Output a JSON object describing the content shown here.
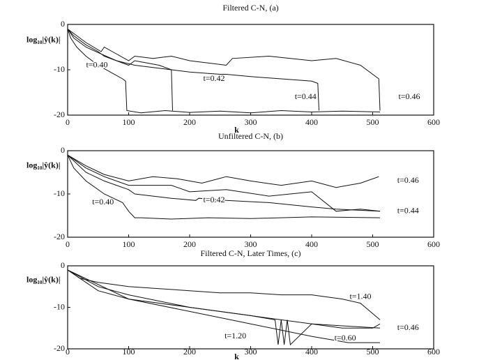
{
  "chart_data": [
    {
      "type": "line",
      "title": "Filtered C-N, (a)",
      "ylabel": "log₁₀|ŷ(k)|",
      "xlabel": "k",
      "xlim": [
        0,
        600
      ],
      "ylim": [
        -20,
        0
      ],
      "xticks": [
        0,
        100,
        200,
        300,
        400,
        500,
        600
      ],
      "yticks": [
        0,
        -10,
        -20
      ],
      "color": "#111111",
      "series": [
        {
          "name": "t=0.40",
          "x": [
            0,
            5,
            15,
            30,
            50,
            70,
            90,
            95,
            97,
            120,
            160,
            200,
            250,
            300,
            350,
            400,
            450,
            512
          ],
          "values": [
            -1,
            -3,
            -5,
            -7,
            -9,
            -10.5,
            -12,
            -12.5,
            -19,
            -19.5,
            -19,
            -19.4,
            -19.1,
            -19.5,
            -19,
            -19.3,
            -19.1,
            -19.3
          ]
        },
        {
          "name": "t=0.42",
          "x": [
            0,
            10,
            30,
            55,
            80,
            110,
            140,
            170,
            172
          ],
          "values": [
            -1,
            -3,
            -5,
            -6.5,
            -8,
            -9,
            -9.5,
            -10,
            -19
          ]
        },
        {
          "name": "t=0.44",
          "x": [
            0,
            10,
            30,
            50,
            60,
            100,
            110,
            150,
            170,
            200,
            250,
            260,
            300,
            350,
            400,
            410,
            412
          ],
          "values": [
            -1,
            -2.5,
            -4.5,
            -6,
            -7,
            -9,
            -8,
            -9,
            -10,
            -10.5,
            -11,
            -11,
            -11.5,
            -12,
            -12.5,
            -13,
            -19
          ]
        },
        {
          "name": "t=0.46",
          "x": [
            0,
            10,
            30,
            55,
            60,
            100,
            110,
            140,
            170,
            200,
            260,
            270,
            330,
            400,
            440,
            480,
            510,
            512
          ],
          "values": [
            -1,
            -2,
            -4,
            -6,
            -5,
            -8,
            -7,
            -7.5,
            -7,
            -8,
            -9,
            -7.5,
            -7,
            -8,
            -7.5,
            -9,
            -12,
            -19
          ]
        }
      ]
    },
    {
      "type": "line",
      "title": "Unfiltered C-N, (b)",
      "ylabel": "log₁₀|ŷ(k)|",
      "xlim": [
        0,
        600
      ],
      "ylim": [
        -20,
        0
      ],
      "xticks": [
        0,
        100,
        200,
        300,
        400,
        500,
        600
      ],
      "yticks": [
        0,
        -10,
        -20
      ],
      "color": "#111111",
      "series": [
        {
          "name": "t=0.40",
          "x": [
            0,
            10,
            30,
            60,
            90,
            100,
            110,
            120,
            170,
            230,
            300,
            400,
            512
          ],
          "values": [
            -1,
            -4,
            -7,
            -10,
            -12,
            -14,
            -15.5,
            -15.5,
            -15.8,
            -15.5,
            -15.7,
            -15.3,
            -15.5
          ]
        },
        {
          "name": "t=0.42",
          "x": [
            0,
            30,
            60,
            100,
            110,
            170,
            210,
            215,
            260,
            330,
            400,
            440,
            512
          ],
          "values": [
            -1,
            -5,
            -7,
            -9,
            -10,
            -11,
            -11.5,
            -11,
            -11.5,
            -12,
            -13,
            -13.5,
            -14
          ]
        },
        {
          "name": "t=0.44",
          "x": [
            0,
            30,
            60,
            100,
            170,
            200,
            260,
            330,
            400,
            440,
            480,
            512
          ],
          "values": [
            -1,
            -4,
            -6,
            -8,
            -8,
            -9.5,
            -9,
            -10.5,
            -9.5,
            -14,
            -13.5,
            -14
          ]
        },
        {
          "name": "t=0.46",
          "x": [
            0,
            30,
            60,
            100,
            140,
            180,
            220,
            260,
            300,
            350,
            400,
            440,
            480,
            510
          ],
          "values": [
            -1,
            -3.5,
            -5.5,
            -7,
            -6,
            -6.5,
            -7.5,
            -6,
            -7,
            -8,
            -7,
            -8.5,
            -7.5,
            -6
          ]
        }
      ]
    },
    {
      "type": "line",
      "title": "Filtered C-N, Later Times, (c)",
      "ylabel": "log₁₀|ŷ(k)|",
      "xlabel": "k",
      "xlim": [
        0,
        600
      ],
      "ylim": [
        -20,
        0
      ],
      "xticks": [
        0,
        100,
        200,
        300,
        400,
        500,
        600
      ],
      "yticks": [
        0,
        -10,
        -20
      ],
      "color": "#111111",
      "series": [
        {
          "name": "t=1.40",
          "x": [
            0,
            20,
            50,
            100,
            150,
            200,
            250,
            300,
            350,
            400,
            450,
            480,
            512
          ],
          "values": [
            -1,
            -3,
            -4,
            -5,
            -5.5,
            -6,
            -6.5,
            -6.5,
            -7,
            -7,
            -8,
            -9,
            -13
          ]
        },
        {
          "name": "t=0.46",
          "x": [
            0,
            50,
            100,
            200,
            300,
            400,
            450,
            500,
            512
          ],
          "values": [
            -1,
            -6,
            -8,
            -10,
            -12,
            -14,
            -15,
            -15,
            -14
          ]
        },
        {
          "name": "t=0.60",
          "x": [
            0,
            100,
            200,
            300,
            400,
            440,
            460,
            512
          ],
          "values": [
            -1,
            -8,
            -11,
            -14,
            -17,
            -18,
            -18.5,
            -18.5
          ]
        },
        {
          "name": "t=1.20",
          "x": [
            0,
            50,
            100,
            200,
            300,
            340,
            345,
            350,
            355,
            360,
            365,
            400,
            512
          ],
          "values": [
            -1,
            -5,
            -7,
            -10,
            -12,
            -13,
            -19,
            -13,
            -19,
            -13,
            -19,
            -14,
            -15
          ]
        }
      ]
    }
  ]
}
